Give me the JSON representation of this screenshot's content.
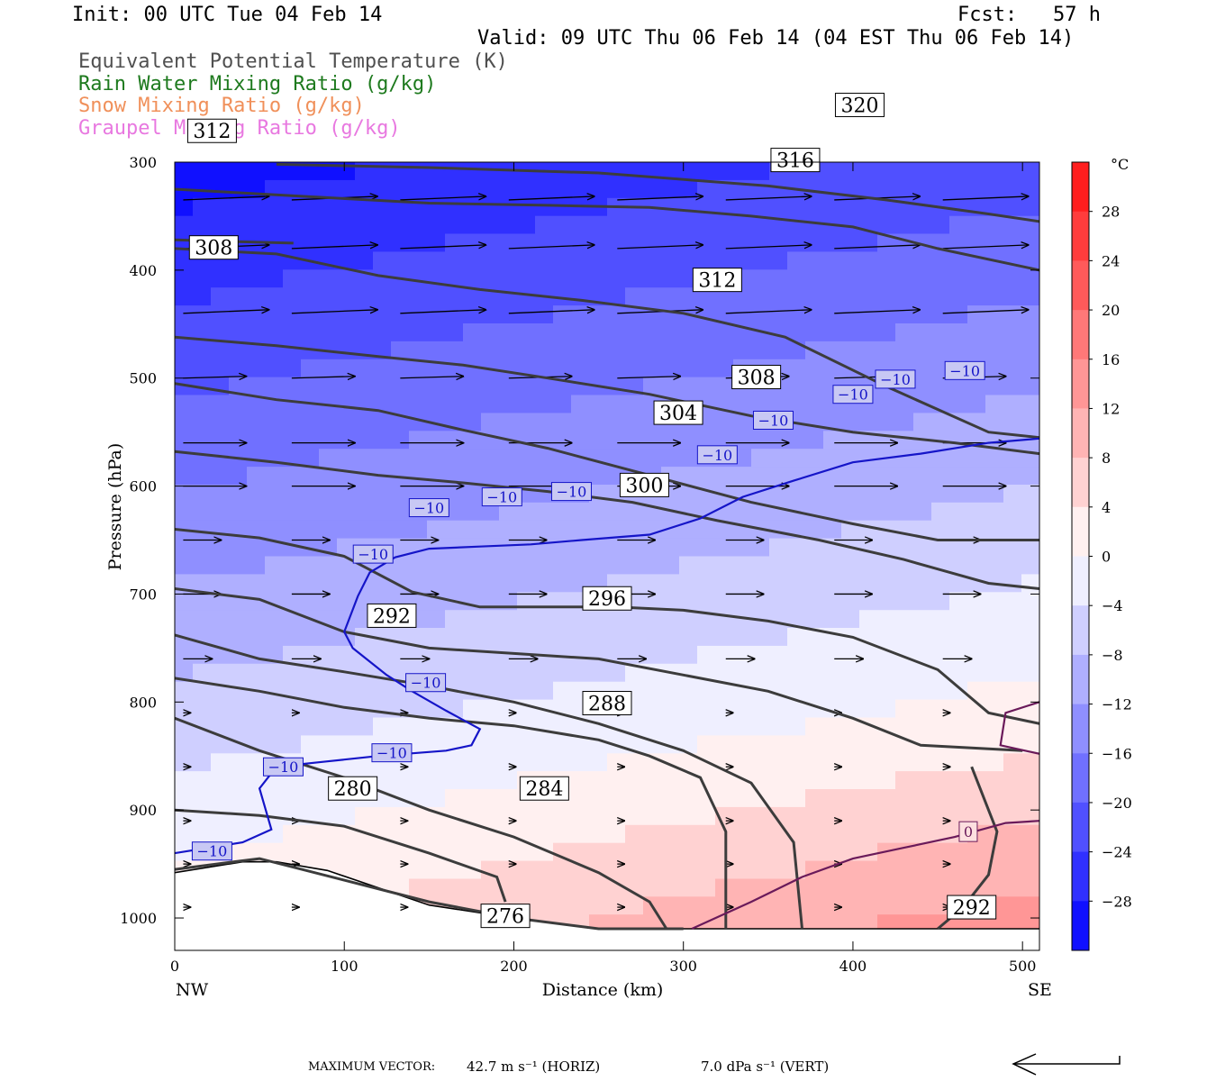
{
  "header": {
    "init": "Init: 00 UTC Tue 04 Feb 14",
    "fcst": "Fcst:   57 h",
    "valid": "Valid: 09 UTC Thu 06 Feb 14 (04 EST Thu 06 Feb 14)",
    "legend": [
      {
        "text": "Equivalent Potential Temperature (K)",
        "color": "#505050"
      },
      {
        "text": "Rain Water Mixing Ratio (g/kg)",
        "color": "#1e7a1e"
      },
      {
        "text": "Snow Mixing Ratio (g/kg)",
        "color": "#f0905a"
      },
      {
        "text": "Graupel Mixing Ratio (g/kg)",
        "color": "#e878e0"
      }
    ]
  },
  "footer": {
    "max_vector_label": "MAXIMUM VECTOR:",
    "horiz": "42.7 m s⁻¹ (HORIZ)",
    "vert": "7.0 dPa s⁻¹ (VERT)"
  },
  "chart_data": {
    "type": "cross-section",
    "xlabel": "Distance (km)",
    "ylabel": "Pressure (hPa)",
    "xlim": [
      0,
      510
    ],
    "ylim": [
      1030,
      300
    ],
    "x_ticks": [
      0,
      100,
      200,
      300,
      400,
      500
    ],
    "y_ticks": [
      300,
      400,
      500,
      600,
      700,
      800,
      900,
      1000
    ],
    "x_end_labels": {
      "left": "NW",
      "right": "SE"
    },
    "colorbar": {
      "unit": "°C",
      "labels": [
        28,
        24,
        20,
        16,
        12,
        8,
        4,
        0,
        -4,
        -8,
        -12,
        -16,
        -20,
        -24,
        -28
      ],
      "max": 32,
      "min": -32
    },
    "theta_e_contours": [
      {
        "value": 276,
        "points": [
          [
            0,
            955
          ],
          [
            50,
            945
          ],
          [
            100,
            965
          ],
          [
            150,
            985
          ],
          [
            200,
            1000
          ],
          [
            250,
            1010
          ],
          [
            300,
            1010
          ]
        ],
        "label_at": [
          195,
          998
        ]
      },
      {
        "value": 280,
        "points": [
          [
            0,
            900
          ],
          [
            50,
            905
          ],
          [
            100,
            915
          ],
          [
            150,
            940
          ],
          [
            190,
            962
          ],
          [
            195,
            985
          ]
        ],
        "label_at": [
          105,
          880
        ]
      },
      {
        "value": 284,
        "points": [
          [
            0,
            815
          ],
          [
            50,
            845
          ],
          [
            100,
            870
          ],
          [
            150,
            900
          ],
          [
            200,
            925
          ],
          [
            250,
            958
          ],
          [
            280,
            985
          ],
          [
            290,
            1010
          ]
        ],
        "label_at": [
          218,
          880
        ]
      },
      {
        "value": 288,
        "points": [
          [
            0,
            778
          ],
          [
            50,
            790
          ],
          [
            100,
            805
          ],
          [
            150,
            815
          ],
          [
            200,
            822
          ],
          [
            250,
            835
          ],
          [
            280,
            850
          ],
          [
            310,
            870
          ],
          [
            325,
            920
          ],
          [
            325,
            1010
          ]
        ],
        "label_at": [
          255,
          801
        ]
      },
      {
        "value": 292,
        "points": [
          [
            0,
            738
          ],
          [
            50,
            760
          ],
          [
            100,
            772
          ],
          [
            150,
            785
          ],
          [
            200,
            800
          ],
          [
            250,
            820
          ],
          [
            300,
            845
          ],
          [
            340,
            875
          ],
          [
            365,
            930
          ],
          [
            370,
            1010
          ]
        ],
        "label_at": [
          128,
          720
        ]
      },
      {
        "value": 292,
        "points": [
          [
            450,
            1010
          ],
          [
            465,
            990
          ],
          [
            480,
            960
          ],
          [
            485,
            920
          ],
          [
            475,
            880
          ],
          [
            470,
            860
          ]
        ],
        "label_at": [
          470,
          990
        ]
      },
      {
        "value": 296,
        "points": [
          [
            0,
            695
          ],
          [
            50,
            705
          ],
          [
            100,
            735
          ],
          [
            150,
            750
          ],
          [
            200,
            755
          ],
          [
            250,
            760
          ],
          [
            300,
            775
          ],
          [
            350,
            790
          ],
          [
            400,
            815
          ],
          [
            440,
            840
          ],
          [
            500,
            845
          ]
        ],
        "label_at": [
          255,
          704
        ]
      },
      {
        "value": 300,
        "points": [
          [
            0,
            640
          ],
          [
            50,
            648
          ],
          [
            100,
            665
          ],
          [
            140,
            698
          ],
          [
            180,
            712
          ],
          [
            220,
            712
          ],
          [
            260,
            712
          ],
          [
            300,
            715
          ],
          [
            350,
            725
          ],
          [
            400,
            740
          ],
          [
            450,
            770
          ],
          [
            480,
            810
          ],
          [
            510,
            820
          ]
        ],
        "label_at": [
          277,
          599
        ]
      },
      {
        "value": 304,
        "points": [
          [
            0,
            568
          ],
          [
            60,
            578
          ],
          [
            120,
            590
          ],
          [
            170,
            597
          ],
          [
            220,
            605
          ],
          [
            270,
            615
          ],
          [
            320,
            632
          ],
          [
            380,
            650
          ],
          [
            430,
            668
          ],
          [
            480,
            690
          ],
          [
            510,
            695
          ]
        ],
        "label_at": [
          297,
          532
        ]
      },
      {
        "value": 308,
        "points": [
          [
            0,
            505
          ],
          [
            60,
            520
          ],
          [
            120,
            530
          ],
          [
            170,
            548
          ],
          [
            220,
            565
          ],
          [
            280,
            590
          ],
          [
            340,
            615
          ],
          [
            400,
            635
          ],
          [
            450,
            650
          ],
          [
            510,
            650
          ]
        ],
        "label_at": [
          343,
          499
        ]
      },
      {
        "value": 308,
        "points": [
          [
            0,
            462
          ],
          [
            60,
            470
          ],
          [
            120,
            480
          ],
          [
            170,
            488
          ],
          [
            220,
            500
          ],
          [
            280,
            515
          ],
          [
            340,
            535
          ],
          [
            400,
            550
          ],
          [
            460,
            560
          ],
          [
            510,
            570
          ]
        ],
        "label_at": [
          23,
          379
        ]
      },
      {
        "value": 312,
        "points": [
          [
            0,
            380
          ],
          [
            60,
            385
          ],
          [
            120,
            405
          ],
          [
            180,
            418
          ],
          [
            240,
            428
          ],
          [
            300,
            440
          ],
          [
            360,
            462
          ],
          [
            420,
            508
          ],
          [
            480,
            550
          ],
          [
            510,
            555
          ]
        ],
        "label_at": [
          320,
          409
        ]
      },
      {
        "value": 312,
        "points": [
          [
            0,
            372
          ],
          [
            70,
            375
          ]
        ],
        "label_at": [
          22,
          271
        ]
      },
      {
        "value": 316,
        "points": [
          [
            0,
            325
          ],
          [
            80,
            332
          ],
          [
            150,
            338
          ],
          [
            220,
            340
          ],
          [
            280,
            342
          ],
          [
            340,
            350
          ],
          [
            400,
            360
          ],
          [
            450,
            380
          ],
          [
            510,
            400
          ]
        ],
        "label_at": [
          366,
          298
        ]
      },
      {
        "value": 320,
        "points": [
          [
            60,
            302
          ],
          [
            150,
            305
          ],
          [
            250,
            310
          ],
          [
            350,
            322
          ],
          [
            420,
            335
          ],
          [
            480,
            348
          ],
          [
            510,
            355
          ]
        ],
        "label_at": [
          404,
          247
        ]
      }
    ],
    "temperature_contours": [
      {
        "value": -10,
        "color": "#1515c8",
        "points": [
          [
            0,
            940
          ],
          [
            40,
            930
          ],
          [
            57,
            918
          ],
          [
            50,
            880
          ],
          [
            60,
            860
          ],
          [
            90,
            855
          ],
          [
            120,
            850
          ],
          [
            160,
            845
          ],
          [
            175,
            840
          ],
          [
            180,
            825
          ],
          [
            160,
            808
          ],
          [
            140,
            790
          ],
          [
            125,
            775
          ],
          [
            105,
            750
          ],
          [
            100,
            735
          ],
          [
            108,
            702
          ],
          [
            115,
            680
          ],
          [
            130,
            666
          ],
          [
            150,
            658
          ],
          [
            180,
            656
          ],
          [
            210,
            654
          ],
          [
            240,
            650
          ],
          [
            280,
            645
          ],
          [
            310,
            630
          ],
          [
            335,
            610
          ],
          [
            365,
            595
          ],
          [
            400,
            578
          ],
          [
            440,
            570
          ],
          [
            480,
            560
          ],
          [
            510,
            556
          ]
        ]
      }
    ],
    "temperature_labels": [
      {
        "value": "−10",
        "at": [
          22,
          938
        ]
      },
      {
        "value": "−10",
        "at": [
          64,
          860
        ]
      },
      {
        "value": "−10",
        "at": [
          128,
          847
        ]
      },
      {
        "value": "−10",
        "at": [
          148,
          782
        ]
      },
      {
        "value": "−10",
        "at": [
          117,
          663
        ]
      },
      {
        "value": "−10",
        "at": [
          150,
          620
        ]
      },
      {
        "value": "−10",
        "at": [
          193,
          610
        ]
      },
      {
        "value": "−10",
        "at": [
          234,
          605
        ]
      },
      {
        "value": "−10",
        "at": [
          320,
          571
        ]
      },
      {
        "value": "−10",
        "at": [
          353,
          539
        ]
      },
      {
        "value": "−10",
        "at": [
          400,
          515
        ]
      },
      {
        "value": "−10",
        "at": [
          425,
          501
        ]
      },
      {
        "value": "−10",
        "at": [
          466,
          493
        ]
      }
    ],
    "zero_contour": {
      "value": "0",
      "color": "#6a1a5a",
      "points": [
        [
          305,
          1010
        ],
        [
          340,
          985
        ],
        [
          370,
          962
        ],
        [
          400,
          945
        ],
        [
          430,
          935
        ],
        [
          460,
          925
        ],
        [
          490,
          912
        ],
        [
          510,
          910
        ]
      ],
      "label_at": [
        468,
        920
      ],
      "upper_loop": [
        [
          510,
          800
        ],
        [
          490,
          810
        ],
        [
          487,
          840
        ],
        [
          510,
          848
        ]
      ]
    },
    "ground_line": [
      [
        0,
        958
      ],
      [
        40,
        948
      ],
      [
        60,
        948
      ],
      [
        90,
        956
      ],
      [
        120,
        972
      ],
      [
        150,
        988
      ],
      [
        200,
        1000
      ],
      [
        250,
        1010
      ],
      [
        320,
        1010
      ],
      [
        400,
        1010
      ],
      [
        510,
        1010
      ]
    ]
  }
}
